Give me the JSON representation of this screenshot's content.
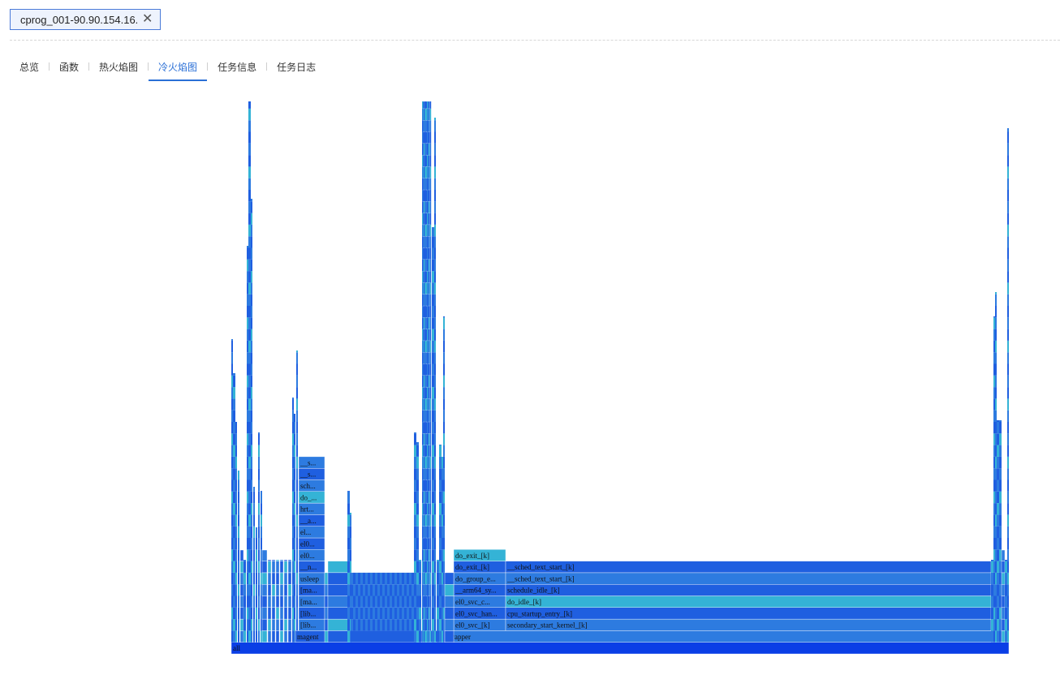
{
  "file_tab": {
    "title": "cprog_001-90.90.154.16...",
    "close_icon": "close-icon"
  },
  "nav": {
    "tabs": [
      "总览",
      "函数",
      "热火焰图",
      "冷火焰图",
      "任务信息",
      "任务日志"
    ],
    "active": "冷火焰图"
  },
  "flamegraph": {
    "colors": {
      "dark_blue": "#0a3ee6",
      "blue": "#1f5fe0",
      "mid_blue": "#2d7be0",
      "teal": "#34b3d6"
    },
    "root": "all",
    "frames": [
      {
        "name": "magent",
        "depth": 1
      },
      {
        "name": "[lib...",
        "depth": 2
      },
      {
        "name": "[lib...",
        "depth": 3
      },
      {
        "name": "[ma...",
        "depth": 4
      },
      {
        "name": "[ma...",
        "depth": 5
      },
      {
        "name": "usleep",
        "depth": 6
      },
      {
        "name": "__n...",
        "depth": 7
      },
      {
        "name": "el0...",
        "depth": 8
      },
      {
        "name": "el0...",
        "depth": 9
      },
      {
        "name": "el...",
        "depth": 10
      },
      {
        "name": "__a...",
        "depth": 11
      },
      {
        "name": "hrt...",
        "depth": 12
      },
      {
        "name": "do_...",
        "depth": 13
      },
      {
        "name": "sch...",
        "depth": 14
      },
      {
        "name": "__s...",
        "depth": 15
      },
      {
        "name": "__s...",
        "depth": 16
      },
      {
        "name": "swapper",
        "depth": 1
      },
      {
        "name": "el0_svc_[k]",
        "depth": 2
      },
      {
        "name": "el0_svc_han...",
        "depth": 3
      },
      {
        "name": "el0_svc_c...",
        "depth": 4
      },
      {
        "name": "__arm64_sy...",
        "depth": 5
      },
      {
        "name": "do_group_e...",
        "depth": 6
      },
      {
        "name": "do_exit_[k]",
        "depth": 7
      },
      {
        "name": "do_exit_[k]",
        "depth": 8
      },
      {
        "name": "secondary_start_kernel_[k]",
        "depth": 2
      },
      {
        "name": "cpu_startup_entry_[k]",
        "depth": 3
      },
      {
        "name": "do_idle_[k]",
        "depth": 4
      },
      {
        "name": "schedule_idle_[k]",
        "depth": 5
      },
      {
        "name": "__sched_text_start_[k]",
        "depth": 6
      },
      {
        "name": "__sched_text_start_[k]",
        "depth": 7
      }
    ]
  }
}
